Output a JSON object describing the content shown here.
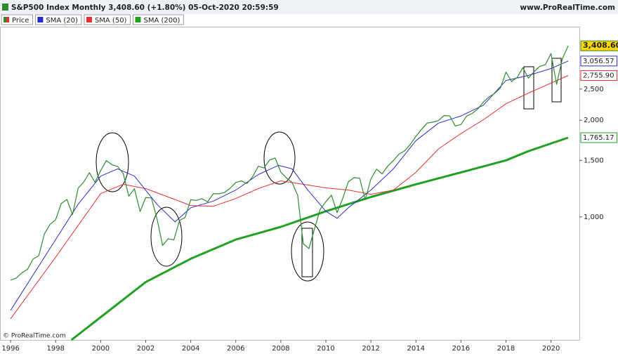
{
  "chart_data": {
    "type": "line",
    "title": "S&P500 Index Monthly 3,408.60 (+1.80%) 05-Oct-2020 20:59:59",
    "site": "www.ProRealTime.com",
    "credit": "© ProRealTime.com",
    "log": true,
    "xlim": [
      1995.56,
      2021.26
    ],
    "xticks": [
      1996,
      1998,
      2000,
      2002,
      2004,
      2006,
      2008,
      2010,
      2012,
      2014,
      2016,
      2018,
      2020
    ],
    "ylim": [
      414,
      3890
    ],
    "yticks": [
      {
        "value": 1000,
        "label": "1,000"
      },
      {
        "value": 1500,
        "label": "1,500"
      },
      {
        "value": 2000,
        "label": "2,000"
      },
      {
        "value": 2500,
        "label": "2,500"
      }
    ],
    "series": [
      {
        "name": "Price",
        "color": "#2e8b2e",
        "width": 1.2,
        "last_label": "3,408.60",
        "label_bg": "#ffd700",
        "x": [
          1996,
          1996.25,
          1996.5,
          1996.75,
          1997,
          1997.25,
          1997.5,
          1997.75,
          1998,
          1998.25,
          1998.5,
          1998.75,
          1999,
          1999.25,
          1999.5,
          1999.75,
          2000,
          2000.25,
          2000.5,
          2000.75,
          2001,
          2001.25,
          2001.5,
          2001.75,
          2002,
          2002.25,
          2002.5,
          2002.75,
          2003,
          2003.25,
          2003.5,
          2003.75,
          2004,
          2004.25,
          2004.5,
          2004.75,
          2005,
          2005.25,
          2005.5,
          2005.75,
          2006,
          2006.25,
          2006.5,
          2006.75,
          2007,
          2007.25,
          2007.5,
          2007.75,
          2008,
          2008.25,
          2008.5,
          2008.75,
          2009,
          2009.25,
          2009.5,
          2009.75,
          2010,
          2010.25,
          2010.5,
          2010.75,
          2011,
          2011.25,
          2011.5,
          2011.75,
          2012,
          2012.25,
          2012.5,
          2012.75,
          2013,
          2013.25,
          2013.5,
          2013.75,
          2014,
          2014.25,
          2014.5,
          2014.75,
          2015,
          2015.25,
          2015.5,
          2015.75,
          2016,
          2016.25,
          2016.5,
          2016.75,
          2017,
          2017.25,
          2017.5,
          2017.75,
          2018,
          2018.25,
          2018.5,
          2018.75,
          2019,
          2019.25,
          2019.5,
          2019.75,
          2020,
          2020.25,
          2020.5,
          2020.76
        ],
        "values": [
          636,
          645,
          670,
          687,
          740,
          757,
          885,
          947,
          980,
          1101,
          1133,
          1017,
          1229,
          1286,
          1373,
          1282,
          1394,
          1498,
          1454,
          1436,
          1366,
          1160,
          1224,
          1040,
          1148,
          1147,
          989,
          815,
          855,
          848,
          975,
          996,
          1131,
          1126,
          1140,
          1114,
          1181,
          1180,
          1191,
          1228,
          1280,
          1294,
          1270,
          1335,
          1438,
          1420,
          1503,
          1526,
          1378,
          1322,
          1280,
          1166,
          825,
          797,
          919,
          1057,
          1115,
          1169,
          1031,
          1141,
          1286,
          1325,
          1320,
          1131,
          1312,
          1408,
          1362,
          1440,
          1498,
          1569,
          1606,
          1681,
          1782,
          1872,
          1960,
          1972,
          1995,
          2068,
          2063,
          1920,
          1940,
          2060,
          2099,
          2168,
          2279,
          2363,
          2423,
          2519,
          2824,
          2640,
          2718,
          2914,
          2704,
          2834,
          2942,
          2977,
          3226,
          2585,
          3100,
          3408.6
        ]
      },
      {
        "name": "SMA (20)",
        "color": "#2b2bcc",
        "width": 1,
        "last_label": "3,056.57",
        "label_bg": "#ffffff",
        "x": [
          1996,
          1998,
          1999,
          2000,
          2000.75,
          2001.5,
          2002.5,
          2003.3,
          2004,
          2005,
          2006,
          2007,
          2007.9,
          2008.5,
          2009.2,
          2010,
          2010.5,
          2011,
          2012,
          2013,
          2014,
          2015,
          2016,
          2017,
          2018,
          2019,
          2020,
          2020.76
        ],
        "values": [
          512,
          850,
          1095,
          1340,
          1411,
          1340,
          1095,
          965,
          1068,
          1120,
          1212,
          1355,
          1447,
          1411,
          1212,
          1041,
          990,
          1068,
          1212,
          1411,
          1727,
          1959,
          2062,
          2228,
          2659,
          2757,
          2896,
          3056.57
        ]
      },
      {
        "name": "SMA (50)",
        "color": "#e83030",
        "width": 1,
        "last_label": "2,755.90",
        "label_bg": "#ffffff",
        "x": [
          1996,
          1998,
          2000,
          2001,
          2002,
          2003,
          2004,
          2005,
          2006,
          2007,
          2008,
          2009,
          2010,
          2011,
          2012,
          2013,
          2014,
          2015,
          2016,
          2017,
          2018,
          2019,
          2020.76
        ],
        "values": [
          482,
          749,
          1182,
          1263,
          1225,
          1153,
          1085,
          1079,
          1141,
          1225,
          1295,
          1263,
          1231,
          1212,
          1176,
          1212,
          1376,
          1627,
          1818,
          2006,
          2250,
          2430,
          2755.9
        ]
      },
      {
        "name": "SMA (200)",
        "color": "#22a022",
        "width": 3,
        "last_label": "1,765.17",
        "label_bg": "#ffffff",
        "x": [
          1998.7,
          2002,
          2004,
          2006,
          2008,
          2010,
          2012,
          2014,
          2016,
          2018,
          2019,
          2020.76
        ],
        "values": [
          414,
          627,
          741,
          850,
          931,
          1041,
          1153,
          1263,
          1376,
          1500,
          1602,
          1765.17
        ]
      }
    ]
  }
}
